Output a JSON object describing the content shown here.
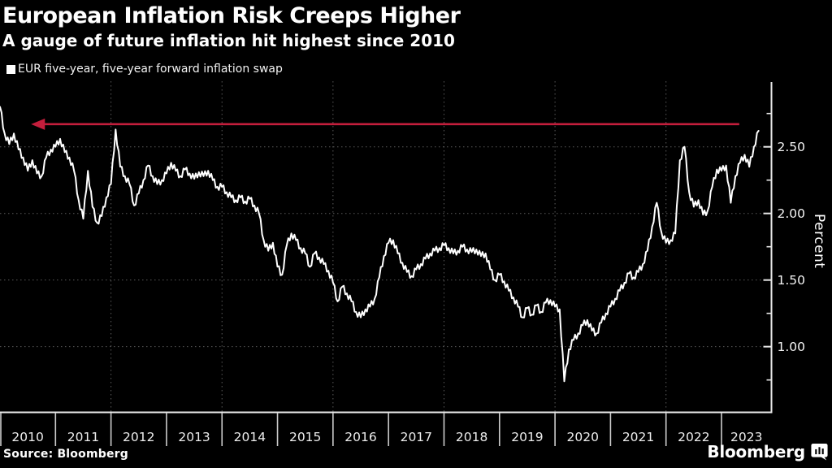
{
  "header": {
    "title": "European Inflation Risk Creeps Higher",
    "subtitle": "A gauge of future inflation hit highest since 2010"
  },
  "legend": {
    "marker_color": "#ffffff",
    "label": "EUR five-year, five-year forward inflation swap"
  },
  "source_line": "Source: Bloomberg",
  "brand": {
    "wordmark": "Bloomberg"
  },
  "colors": {
    "background": "#000000",
    "series": "#ffffff",
    "grid": "#5a5a5a",
    "axis": "#e8e8e8",
    "tick": "#cccccc",
    "arrow": "#c41e3c"
  },
  "chart_data": {
    "type": "line",
    "title": "European Inflation Risk Creeps Higher",
    "subtitle": "A gauge of future inflation hit highest since 2010",
    "ylabel": "Percent",
    "ylim": [
      0.51,
      2.98
    ],
    "xlim_years": [
      2010,
      2023.9
    ],
    "grid": "dotted",
    "axis_side": "right",
    "yticks_major": [
      2.5,
      2.0,
      1.5,
      1.0
    ],
    "yticks_minor": [
      2.75,
      2.25,
      1.75,
      1.25,
      0.75
    ],
    "x_year_labels": [
      "2010",
      "2011",
      "2012",
      "2013",
      "2014",
      "2015",
      "2016",
      "2017",
      "2018",
      "2019",
      "2020",
      "2021",
      "2022",
      "2023"
    ],
    "x_gridline_years": [
      2012,
      2014,
      2016,
      2018,
      2020,
      2022
    ],
    "annotation_arrow": {
      "y_value": 2.67,
      "x_tail_year": 2023.32,
      "x_head_year": 2010.56,
      "direction": "left",
      "color": "#c41e3c"
    },
    "series": [
      {
        "name": "EUR five-year, five-year forward inflation swap",
        "color": "#ffffff",
        "frequency": "monthly",
        "start_year": 2010,
        "start_month": 1,
        "unit": "percent",
        "values": [
          2.8,
          2.6,
          2.52,
          2.6,
          2.48,
          2.42,
          2.32,
          2.4,
          2.3,
          2.28,
          2.42,
          2.48,
          2.5,
          2.56,
          2.46,
          2.42,
          2.32,
          2.1,
          1.96,
          2.32,
          2.05,
          1.93,
          1.98,
          2.12,
          2.22,
          2.63,
          2.35,
          2.28,
          2.22,
          2.06,
          2.15,
          2.25,
          2.36,
          2.28,
          2.22,
          2.25,
          2.3,
          2.38,
          2.32,
          2.28,
          2.33,
          2.3,
          2.26,
          2.31,
          2.28,
          2.32,
          2.25,
          2.2,
          2.2,
          2.16,
          2.12,
          2.1,
          2.12,
          2.09,
          2.11,
          2.06,
          2.0,
          1.8,
          1.72,
          1.78,
          1.6,
          1.54,
          1.76,
          1.85,
          1.8,
          1.74,
          1.7,
          1.6,
          1.7,
          1.67,
          1.62,
          1.57,
          1.48,
          1.34,
          1.45,
          1.4,
          1.34,
          1.26,
          1.22,
          1.28,
          1.3,
          1.36,
          1.52,
          1.68,
          1.78,
          1.8,
          1.7,
          1.63,
          1.56,
          1.53,
          1.58,
          1.62,
          1.66,
          1.7,
          1.72,
          1.74,
          1.76,
          1.74,
          1.7,
          1.72,
          1.75,
          1.73,
          1.71,
          1.73,
          1.68,
          1.7,
          1.58,
          1.5,
          1.54,
          1.49,
          1.42,
          1.37,
          1.3,
          1.22,
          1.29,
          1.24,
          1.31,
          1.26,
          1.33,
          1.35,
          1.3,
          1.28,
          0.74,
          0.98,
          1.05,
          1.1,
          1.16,
          1.2,
          1.12,
          1.1,
          1.18,
          1.25,
          1.3,
          1.36,
          1.42,
          1.48,
          1.55,
          1.52,
          1.56,
          1.62,
          1.72,
          1.9,
          2.08,
          1.86,
          1.78,
          1.8,
          1.85,
          2.4,
          2.5,
          2.16,
          2.05,
          2.1,
          1.99,
          2.02,
          2.2,
          2.33,
          2.32,
          2.36,
          2.08,
          2.28,
          2.38,
          2.44,
          2.35,
          2.5,
          2.62
        ]
      }
    ]
  }
}
